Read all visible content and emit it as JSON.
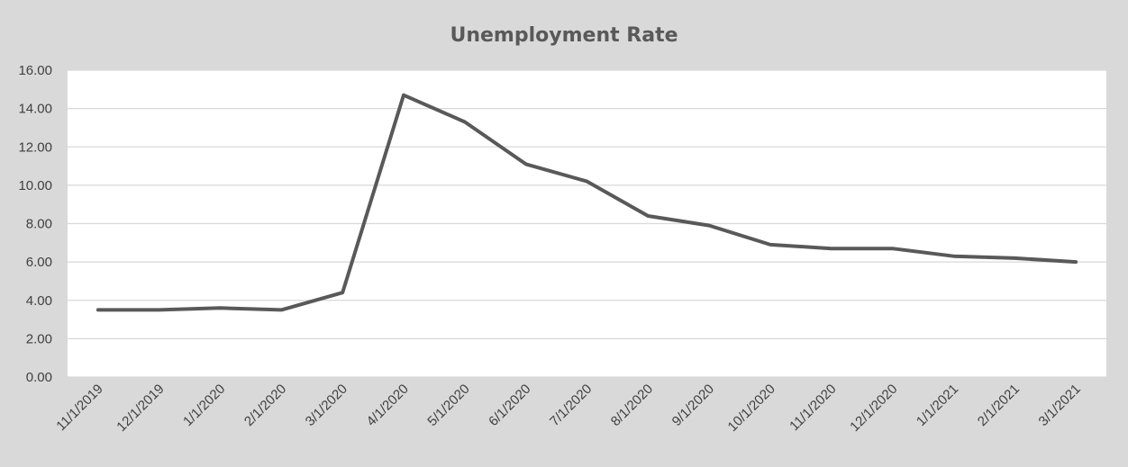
{
  "chart_data": {
    "type": "line",
    "title": "Unemployment Rate",
    "xlabel": "",
    "ylabel": "",
    "categories": [
      "11/1/2019",
      "12/1/2019",
      "1/1/2020",
      "2/1/2020",
      "3/1/2020",
      "4/1/2020",
      "5/1/2020",
      "6/1/2020",
      "7/1/2020",
      "8/1/2020",
      "9/1/2020",
      "10/1/2020",
      "11/1/2020",
      "12/1/2020",
      "1/1/2021",
      "2/1/2021",
      "3/1/2021"
    ],
    "series": [
      {
        "values": [
          3.5,
          3.5,
          3.6,
          3.5,
          4.4,
          14.7,
          13.3,
          11.1,
          10.2,
          8.4,
          7.9,
          6.9,
          6.7,
          6.7,
          6.3,
          6.2,
          6.0
        ]
      }
    ],
    "ylim": [
      0,
      16
    ],
    "y_ticks": [
      "0.00",
      "2.00",
      "4.00",
      "6.00",
      "8.00",
      "10.00",
      "12.00",
      "14.00",
      "16.00"
    ],
    "grid": true,
    "legend": "none",
    "colors": {
      "background": "#d9d9d9",
      "plot_area": "#ffffff",
      "gridline": "#d9d9d9",
      "line": "#595959",
      "text": "#404040",
      "title": "#595959"
    }
  }
}
